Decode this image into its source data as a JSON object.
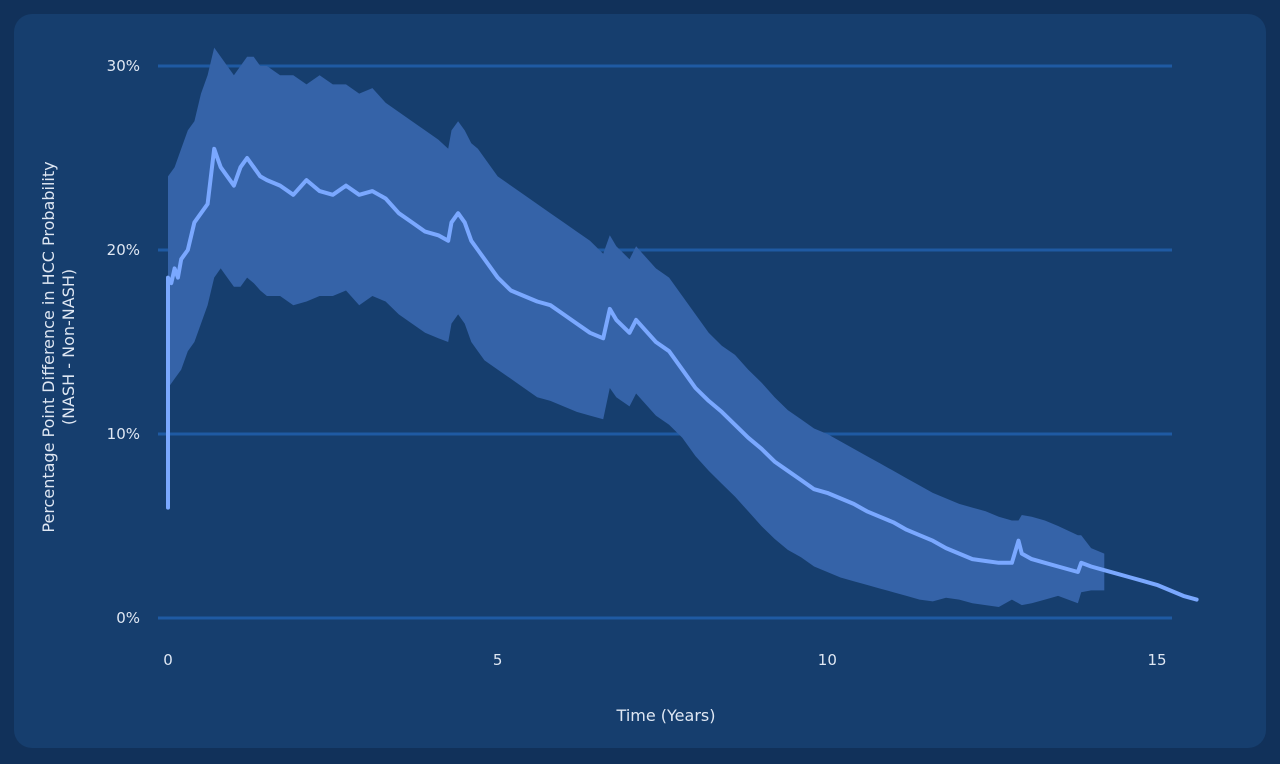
{
  "colors": {
    "page_background": "#11315a",
    "card_background": "#163e6e",
    "gridline": "#1f5aa3",
    "band": "#3563a8",
    "line": "#7aa8ff",
    "text": "#dfe7f3"
  },
  "chart_data": {
    "type": "line",
    "title": "",
    "xlabel": "Time (Years)",
    "ylabel": [
      "Percentage Point Difference in HCC Probability",
      "(NASH - Non-NASH)"
    ],
    "xlim": [
      0,
      15.6
    ],
    "ylim": [
      0,
      30
    ],
    "grid": "horizontal",
    "x_ticks": [
      0,
      5,
      10,
      15
    ],
    "x_tick_labels": [
      "0",
      "5",
      "10",
      "15"
    ],
    "y_ticks": [
      0,
      10,
      20,
      30
    ],
    "y_tick_labels": [
      "0%",
      "10%",
      "20%",
      "30%"
    ],
    "series": [
      {
        "kind": "estimate",
        "x": [
          0.0,
          0.0,
          0.05,
          0.1,
          0.15,
          0.2,
          0.3,
          0.4,
          0.5,
          0.6,
          0.65,
          0.7,
          0.75,
          0.8,
          0.9,
          1.0,
          1.1,
          1.2,
          1.3,
          1.4,
          1.5,
          1.7,
          1.9,
          2.1,
          2.3,
          2.5,
          2.7,
          2.9,
          3.1,
          3.3,
          3.5,
          3.7,
          3.9,
          4.1,
          4.25,
          4.3,
          4.4,
          4.5,
          4.6,
          4.7,
          4.8,
          5.0,
          5.2,
          5.4,
          5.6,
          5.8,
          6.0,
          6.2,
          6.4,
          6.6,
          6.7,
          6.8,
          7.0,
          7.1,
          7.2,
          7.4,
          7.6,
          7.8,
          8.0,
          8.2,
          8.4,
          8.6,
          8.8,
          9.0,
          9.2,
          9.4,
          9.6,
          9.8,
          10.0,
          10.2,
          10.4,
          10.6,
          10.8,
          11.0,
          11.2,
          11.4,
          11.6,
          11.8,
          12.0,
          12.2,
          12.4,
          12.6,
          12.8,
          12.9,
          12.95,
          13.1,
          13.3,
          13.5,
          13.8,
          13.85,
          14.0,
          14.2,
          14.4,
          14.6,
          14.8,
          15.0,
          15.2,
          15.4,
          15.6
        ],
        "y": [
          6.0,
          18.5,
          18.2,
          19.0,
          18.5,
          19.5,
          20.0,
          21.5,
          22.0,
          22.5,
          24.0,
          25.5,
          25.0,
          24.5,
          24.0,
          23.5,
          24.5,
          25.0,
          24.5,
          24.0,
          23.8,
          23.5,
          23.0,
          23.8,
          23.2,
          23.0,
          23.5,
          23.0,
          23.2,
          22.8,
          22.0,
          21.5,
          21.0,
          20.8,
          20.5,
          21.5,
          22.0,
          21.5,
          20.5,
          20.0,
          19.5,
          18.5,
          17.8,
          17.5,
          17.2,
          17.0,
          16.5,
          16.0,
          15.5,
          15.2,
          16.8,
          16.2,
          15.5,
          16.2,
          15.8,
          15.0,
          14.5,
          13.5,
          12.5,
          11.8,
          11.2,
          10.5,
          9.8,
          9.2,
          8.5,
          8.0,
          7.5,
          7.0,
          6.8,
          6.5,
          6.2,
          5.8,
          5.5,
          5.2,
          4.8,
          4.5,
          4.2,
          3.8,
          3.5,
          3.2,
          3.1,
          3.0,
          3.0,
          4.2,
          3.5,
          3.2,
          3.0,
          2.8,
          2.5,
          3.0,
          2.8,
          2.6,
          2.4,
          2.2,
          2.0,
          1.8,
          1.5,
          1.2,
          1.0
        ]
      },
      {
        "kind": "upper bound",
        "x": [
          0.0,
          0.0,
          0.1,
          0.2,
          0.3,
          0.4,
          0.5,
          0.6,
          0.7,
          0.8,
          0.9,
          1.0,
          1.1,
          1.2,
          1.3,
          1.4,
          1.5,
          1.7,
          1.9,
          2.1,
          2.3,
          2.5,
          2.7,
          2.9,
          3.1,
          3.3,
          3.5,
          3.7,
          3.9,
          4.1,
          4.25,
          4.3,
          4.4,
          4.5,
          4.6,
          4.7,
          4.8,
          5.0,
          5.2,
          5.4,
          5.6,
          5.8,
          6.0,
          6.2,
          6.4,
          6.6,
          6.7,
          6.8,
          7.0,
          7.1,
          7.2,
          7.4,
          7.6,
          7.8,
          8.0,
          8.2,
          8.4,
          8.6,
          8.8,
          9.0,
          9.2,
          9.4,
          9.6,
          9.8,
          10.0,
          10.2,
          10.4,
          10.6,
          10.8,
          11.0,
          11.2,
          11.4,
          11.6,
          11.8,
          12.0,
          12.2,
          12.4,
          12.6,
          12.8,
          12.9,
          12.95,
          13.1,
          13.3,
          13.5,
          13.8,
          13.85,
          14.0,
          14.2
        ],
        "y": [
          24.0,
          24.0,
          24.5,
          25.5,
          26.5,
          27.0,
          28.5,
          29.5,
          31.0,
          30.5,
          30.0,
          29.5,
          30.0,
          30.5,
          30.5,
          30.0,
          30.0,
          29.5,
          29.5,
          29.0,
          29.5,
          29.0,
          29.0,
          28.5,
          28.8,
          28.0,
          27.5,
          27.0,
          26.5,
          26.0,
          25.5,
          26.5,
          27.0,
          26.5,
          25.8,
          25.5,
          25.0,
          24.0,
          23.5,
          23.0,
          22.5,
          22.0,
          21.5,
          21.0,
          20.5,
          19.8,
          20.8,
          20.2,
          19.5,
          20.2,
          19.8,
          19.0,
          18.5,
          17.5,
          16.5,
          15.5,
          14.8,
          14.3,
          13.5,
          12.8,
          12.0,
          11.3,
          10.8,
          10.3,
          10.0,
          9.6,
          9.2,
          8.8,
          8.4,
          8.0,
          7.6,
          7.2,
          6.8,
          6.5,
          6.2,
          6.0,
          5.8,
          5.5,
          5.3,
          5.3,
          5.6,
          5.5,
          5.3,
          5.0,
          4.5,
          4.5,
          3.8,
          3.5
        ]
      },
      {
        "kind": "lower bound",
        "x": [
          0.0,
          0.0,
          0.1,
          0.2,
          0.3,
          0.4,
          0.5,
          0.6,
          0.7,
          0.8,
          0.9,
          1.0,
          1.1,
          1.2,
          1.3,
          1.4,
          1.5,
          1.7,
          1.9,
          2.1,
          2.3,
          2.5,
          2.7,
          2.9,
          3.1,
          3.3,
          3.5,
          3.7,
          3.9,
          4.1,
          4.25,
          4.3,
          4.4,
          4.5,
          4.6,
          4.7,
          4.8,
          5.0,
          5.2,
          5.4,
          5.6,
          5.8,
          6.0,
          6.2,
          6.4,
          6.6,
          6.7,
          6.8,
          7.0,
          7.1,
          7.2,
          7.4,
          7.6,
          7.8,
          8.0,
          8.2,
          8.4,
          8.6,
          8.8,
          9.0,
          9.2,
          9.4,
          9.6,
          9.8,
          10.0,
          10.2,
          10.4,
          10.6,
          10.8,
          11.0,
          11.2,
          11.4,
          11.6,
          11.8,
          12.0,
          12.2,
          12.4,
          12.6,
          12.8,
          12.9,
          12.95,
          13.1,
          13.3,
          13.5,
          13.8,
          13.85,
          14.0,
          14.2
        ],
        "y": [
          6.0,
          12.5,
          13.0,
          13.5,
          14.5,
          15.0,
          16.0,
          17.0,
          18.5,
          19.0,
          18.5,
          18.0,
          18.0,
          18.5,
          18.2,
          17.8,
          17.5,
          17.5,
          17.0,
          17.2,
          17.5,
          17.5,
          17.8,
          17.0,
          17.5,
          17.2,
          16.5,
          16.0,
          15.5,
          15.2,
          15.0,
          16.0,
          16.5,
          16.0,
          15.0,
          14.5,
          14.0,
          13.5,
          13.0,
          12.5,
          12.0,
          11.8,
          11.5,
          11.2,
          11.0,
          10.8,
          12.5,
          12.0,
          11.5,
          12.2,
          11.8,
          11.0,
          10.5,
          9.8,
          8.8,
          8.0,
          7.3,
          6.6,
          5.8,
          5.0,
          4.3,
          3.7,
          3.3,
          2.8,
          2.5,
          2.2,
          2.0,
          1.8,
          1.6,
          1.4,
          1.2,
          1.0,
          0.9,
          1.1,
          1.0,
          0.8,
          0.7,
          0.6,
          1.0,
          0.8,
          0.7,
          0.8,
          1.0,
          1.2,
          0.8,
          1.4,
          1.5,
          1.5
        ]
      }
    ]
  }
}
